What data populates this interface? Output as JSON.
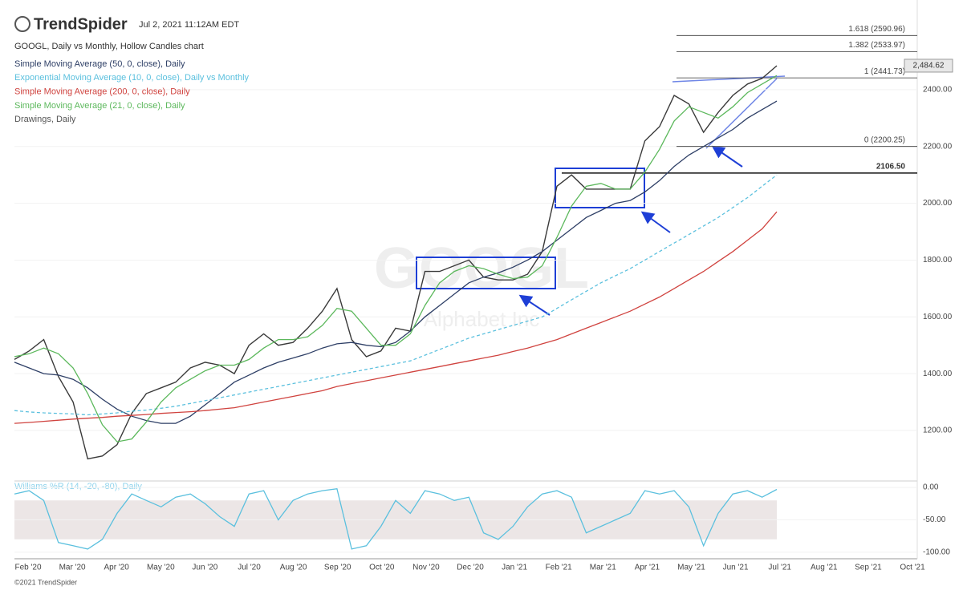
{
  "header": {
    "logo": "TrendSpider",
    "timestamp": "Jul 2, 2021 11:12AM EDT"
  },
  "x_axis_labels": [
    "Feb '20",
    "Mar '20",
    "Apr '20",
    "May '20",
    "Jun '20",
    "Jul '20",
    "Aug '20",
    "Sep '20",
    "Oct '20",
    "Nov '20",
    "Dec '20",
    "Jan '21",
    "Feb '21",
    "Mar '21",
    "Apr '21",
    "May '21",
    "Jun '21",
    "Jul '21",
    "Aug '21",
    "Sep '21",
    "Oct '21"
  ],
  "footer": "©2021 TrendSpider",
  "chart_data": [
    {
      "type": "line",
      "title": "GOOGL, Daily vs Monthly, Hollow Candles chart",
      "watermark": [
        "GOOGL",
        "Alphabet Inc"
      ],
      "series": [
        {
          "color": "#3a3a3a",
          "values": [
            1450,
            1480,
            1520,
            1390,
            1300,
            1100,
            1110,
            1150,
            1260,
            1330,
            1350,
            1370,
            1420,
            1440,
            1430,
            1400,
            1500,
            1540,
            1500,
            1510,
            1560,
            1620,
            1700,
            1520,
            1460,
            1480,
            1560,
            1550,
            1760,
            1760,
            1780,
            1800,
            1740,
            1730,
            1730,
            1750,
            1830,
            2060,
            2100,
            2050,
            2050,
            2050,
            2050,
            2220,
            2270,
            2380,
            2350,
            2250,
            2320,
            2380,
            2420,
            2440,
            2484.62
          ]
        },
        {
          "name": "Simple Moving Average (50, 0, close), Daily",
          "color": "#2e3f66",
          "values": [
            1440,
            1420,
            1400,
            1395,
            1380,
            1350,
            1310,
            1275,
            1250,
            1235,
            1225,
            1225,
            1250,
            1290,
            1330,
            1370,
            1395,
            1420,
            1440,
            1455,
            1470,
            1490,
            1505,
            1510,
            1500,
            1495,
            1510,
            1550,
            1600,
            1640,
            1680,
            1720,
            1740,
            1755,
            1775,
            1800,
            1830,
            1870,
            1910,
            1950,
            1975,
            2000,
            2010,
            2040,
            2080,
            2130,
            2170,
            2200,
            2230,
            2260,
            2300,
            2330,
            2360
          ]
        },
        {
          "name": "Exponential Moving Average (10, 0, close), Daily vs Monthly",
          "color": "#5bc0de",
          "style": "dashed",
          "values": [
            1270,
            1265,
            1262,
            1260,
            1258,
            1255,
            1258,
            1262,
            1268,
            1272,
            1278,
            1285,
            1295,
            1305,
            1315,
            1325,
            1335,
            1345,
            1355,
            1365,
            1375,
            1385,
            1395,
            1405,
            1415,
            1425,
            1435,
            1445,
            1465,
            1485,
            1505,
            1525,
            1540,
            1555,
            1570,
            1585,
            1600,
            1630,
            1660,
            1690,
            1720,
            1745,
            1770,
            1800,
            1830,
            1860,
            1890,
            1920,
            1950,
            1985,
            2020,
            2060,
            2100
          ]
        },
        {
          "name": "Simple Moving Average (200, 0, close), Daily",
          "color": "#d0433f",
          "values": [
            1225,
            1228,
            1232,
            1236,
            1240,
            1243,
            1246,
            1250,
            1253,
            1256,
            1260,
            1263,
            1266,
            1270,
            1275,
            1280,
            1290,
            1300,
            1310,
            1320,
            1330,
            1340,
            1355,
            1365,
            1375,
            1385,
            1395,
            1405,
            1415,
            1425,
            1435,
            1445,
            1455,
            1465,
            1478,
            1490,
            1505,
            1520,
            1540,
            1560,
            1580,
            1600,
            1620,
            1645,
            1670,
            1700,
            1730,
            1760,
            1795,
            1830,
            1870,
            1910,
            1970
          ]
        },
        {
          "name": "Simple Moving Average (21, 0, close), Daily",
          "color": "#5cb85c",
          "values": [
            1460,
            1470,
            1490,
            1470,
            1420,
            1330,
            1220,
            1160,
            1170,
            1230,
            1300,
            1350,
            1380,
            1410,
            1430,
            1430,
            1450,
            1490,
            1520,
            1520,
            1530,
            1570,
            1630,
            1620,
            1560,
            1500,
            1500,
            1540,
            1640,
            1720,
            1760,
            1780,
            1770,
            1750,
            1735,
            1740,
            1780,
            1880,
            1990,
            2060,
            2070,
            2050,
            2050,
            2110,
            2190,
            2290,
            2340,
            2320,
            2300,
            2340,
            2390,
            2420,
            2450
          ]
        }
      ],
      "drawings_label": "Drawings, Daily",
      "ylim": [
        1022,
        2716
      ],
      "yticks": [
        {
          "value": 1200,
          "label": "1200.00"
        },
        {
          "value": 1400,
          "label": "1400.00"
        },
        {
          "value": 1600,
          "label": "1600.00"
        },
        {
          "value": 1800,
          "label": "1800.00"
        },
        {
          "value": 2000,
          "label": "2000.00"
        },
        {
          "value": 2200,
          "label": "2200.00"
        },
        {
          "value": 2400,
          "label": "2400.00"
        }
      ],
      "fib_levels": [
        {
          "value": 2590.96,
          "label": "1.618 (2590.96)"
        },
        {
          "value": 2533.97,
          "label": "1.382 (2533.97)"
        },
        {
          "value": 2441.73,
          "label": "1 (2441.73)"
        },
        {
          "value": 2200.25,
          "label": "0 (2200.25)"
        }
      ],
      "level": {
        "value": 2106.5,
        "label": "2106.50"
      },
      "price_tag_label": "2,484.62"
    },
    {
      "type": "line",
      "title": "Williams %R (14, -20, -80), Daily",
      "series": [
        {
          "color": "#5bc0de",
          "values": [
            -10,
            -5,
            -20,
            -85,
            -90,
            -95,
            -80,
            -40,
            -10,
            -20,
            -30,
            -15,
            -10,
            -25,
            -45,
            -60,
            -10,
            -5,
            -50,
            -20,
            -10,
            -5,
            -2,
            -95,
            -90,
            -60,
            -20,
            -40,
            -5,
            -10,
            -20,
            -15,
            -70,
            -80,
            -60,
            -30,
            -10,
            -5,
            -15,
            -70,
            -60,
            -50,
            -40,
            -5,
            -10,
            -5,
            -30,
            -90,
            -40,
            -10,
            -5,
            -15,
            -3
          ]
        }
      ],
      "band": [
        -80,
        -20
      ],
      "ylim": [
        -110,
        10
      ],
      "yticks": [
        {
          "value": 0,
          "label": "0.00"
        },
        {
          "value": -50,
          "label": "-50.00"
        },
        {
          "value": -100,
          "label": "-100.00"
        }
      ]
    }
  ]
}
